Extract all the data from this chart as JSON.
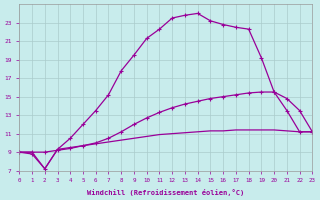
{
  "xlabel": "Windchill (Refroidissement éolien,°C)",
  "background_color": "#c8ecec",
  "line_color": "#990099",
  "grid_color": "#aacccc",
  "x_hours": [
    0,
    1,
    2,
    3,
    4,
    5,
    6,
    7,
    8,
    9,
    10,
    11,
    12,
    13,
    14,
    15,
    16,
    17,
    18,
    19,
    20,
    21,
    22,
    23
  ],
  "curve1_y": [
    9.0,
    8.8,
    7.2,
    9.3,
    10.5,
    12.0,
    13.5,
    15.2,
    17.8,
    19.5,
    21.3,
    22.3,
    23.5,
    23.8,
    24.0,
    23.2,
    22.8,
    22.5,
    22.3,
    19.2,
    15.5,
    13.5,
    11.2,
    11.2
  ],
  "curve2_y": [
    9.0,
    9.0,
    9.0,
    9.2,
    9.4,
    9.7,
    10.0,
    10.5,
    11.2,
    12.0,
    12.7,
    13.3,
    13.8,
    14.2,
    14.5,
    14.8,
    15.0,
    15.2,
    15.4,
    15.5,
    15.5,
    14.8,
    13.5,
    11.2
  ],
  "curve3_y": [
    9.0,
    9.0,
    7.2,
    9.3,
    9.5,
    9.7,
    9.9,
    10.1,
    10.3,
    10.5,
    10.7,
    10.9,
    11.0,
    11.1,
    11.2,
    11.3,
    11.3,
    11.4,
    11.4,
    11.4,
    11.4,
    11.3,
    11.2,
    11.2
  ],
  "ylim": [
    7,
    25
  ],
  "yticks": [
    7,
    9,
    11,
    13,
    15,
    17,
    19,
    21,
    23
  ],
  "xlim": [
    0,
    23
  ]
}
